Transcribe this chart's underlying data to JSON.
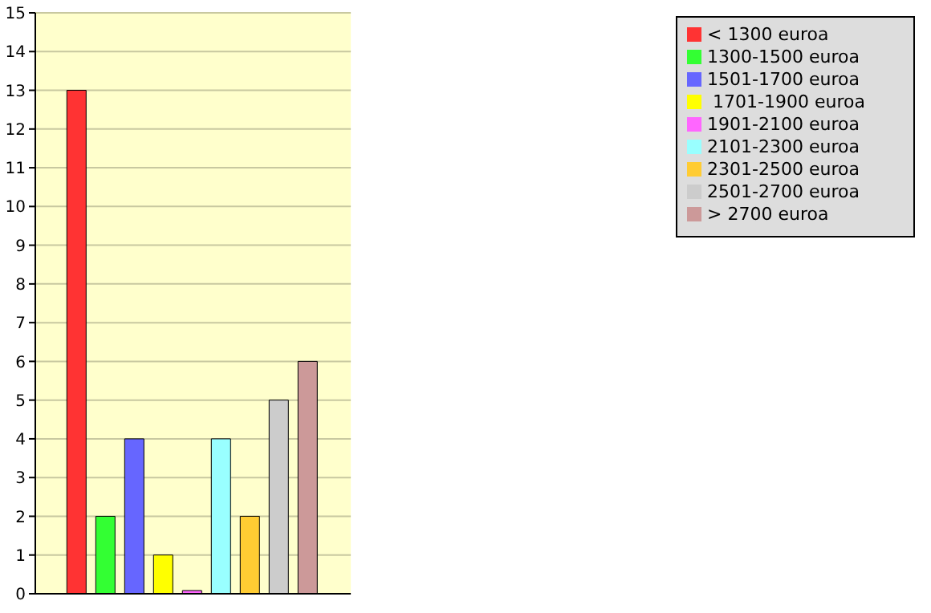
{
  "chart_data": {
    "type": "bar",
    "categories": [
      null
    ],
    "series": [
      {
        "name": "< 1300 euroa",
        "color": "#ff3333",
        "values": [
          13
        ]
      },
      {
        "name": "1300-1500 euroa",
        "color": "#33ff33",
        "values": [
          2
        ]
      },
      {
        "name": "1501-1700 euroa",
        "color": "#6666ff",
        "values": [
          4
        ]
      },
      {
        "name": " 1701-1900 euroa",
        "color": "#ffff00",
        "values": [
          1
        ]
      },
      {
        "name": "1901-2100 euroa",
        "color": "#ff66ff",
        "values": [
          0
        ]
      },
      {
        "name": "2101-2300 euroa",
        "color": "#99ffff",
        "values": [
          4
        ]
      },
      {
        "name": "2301-2500 euroa",
        "color": "#ffcc33",
        "values": [
          2
        ]
      },
      {
        "name": "2501-2700 euroa",
        "color": "#cccccc",
        "values": [
          5
        ]
      },
      {
        "name": "> 2700 euroa",
        "color": "#cc9999",
        "values": [
          6
        ]
      }
    ],
    "ylim": [
      0,
      15
    ],
    "yticks": [
      0,
      1,
      2,
      3,
      4,
      5,
      6,
      7,
      8,
      9,
      10,
      11,
      12,
      13,
      14,
      15
    ],
    "grid": "y",
    "legend": "top right"
  }
}
